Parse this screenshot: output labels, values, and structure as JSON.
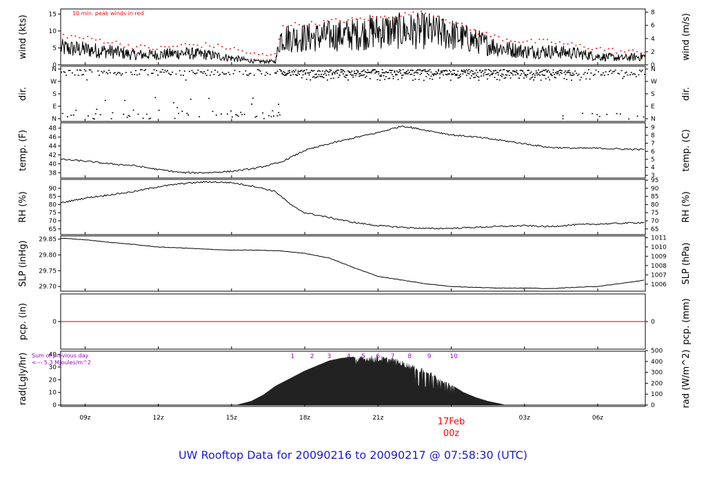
{
  "footer_title": "UW Rooftop Data for 20090216  to  20090217 @ 07:58:30  (UTC)",
  "colors": {
    "axis": "#000000",
    "peak": "#ff0000",
    "precip_line": "#cc0000",
    "title": "#1a1ad6",
    "radnote": "#9900cc",
    "daylabel": "#ff0000"
  },
  "x_axis": {
    "ticks": [
      "09z",
      "12z",
      "15z",
      "18z",
      "21z",
      "00z",
      "03z",
      "06z"
    ],
    "tick_hours": [
      9,
      12,
      15,
      18,
      21,
      24,
      27,
      30
    ],
    "day_label": "17Feb",
    "day_sub": "00z",
    "range_hours": [
      8.0,
      31.95
    ]
  },
  "panels": {
    "wind": {
      "left_label": "wind (kts)",
      "right_label": "wind (m/s)",
      "left_ticks": [
        "15",
        "10",
        "5",
        "0"
      ],
      "right_ticks": [
        "8",
        "6",
        "4",
        "2",
        "0"
      ],
      "note": "10 min. peak winds in red",
      "ylim": [
        0,
        16.5
      ]
    },
    "dir": {
      "left_label": "dir.",
      "right_label": "dir.",
      "left_ticks": [
        "N",
        "W",
        "S",
        "E",
        "N"
      ],
      "right_ticks": [
        "N",
        "W",
        "S",
        "E",
        "N"
      ]
    },
    "temp": {
      "left_label": "temp. (F)",
      "right_label": "temp. (C)",
      "left_ticks": [
        "48",
        "46",
        "44",
        "42",
        "40",
        "38"
      ],
      "right_ticks": [
        "9",
        "8",
        "7",
        "6",
        "5",
        "4",
        "3"
      ],
      "ylim": [
        36.8,
        49.2
      ]
    },
    "rh": {
      "left_label": "RH (%)",
      "right_label": "RH (%)",
      "left_ticks": [
        "90",
        "85",
        "80",
        "75",
        "70",
        "65"
      ],
      "right_ticks": [
        "95",
        "90",
        "85",
        "80",
        "75",
        "70",
        "65"
      ],
      "ylim": [
        61.5,
        95.5
      ]
    },
    "slp": {
      "left_label": "SLP (inHg)",
      "right_label": "SLP (hPa)",
      "left_ticks": [
        "29.85",
        "29.80",
        "29.75",
        "29.70"
      ],
      "right_ticks": [
        "1011",
        "1010",
        "1009",
        "1008",
        "1007",
        "1006"
      ],
      "ylim": [
        29.685,
        29.86
      ]
    },
    "pcp": {
      "left_label": "pcp. (in)",
      "right_label": "pcp. (mm)",
      "left_ticks": [
        "0"
      ],
      "right_ticks": [
        "0"
      ]
    },
    "rad": {
      "left_label": "rad(Lgly/hr)",
      "right_label": "rad (W/m^2)",
      "left_ticks": [
        "40",
        "30",
        "20",
        "10",
        "0"
      ],
      "right_ticks": [
        "500",
        "400",
        "300",
        "200",
        "100",
        "0"
      ],
      "note1": "Sum of previous day",
      "note2": "<--- 5.3 MJoules/m^2",
      "uv_labels": [
        "1",
        "2",
        "3",
        "4",
        "5",
        "6",
        "7",
        "8",
        "9",
        "10"
      ],
      "ylim": [
        0,
        42.5
      ]
    }
  },
  "chart_data": [
    {
      "type": "line",
      "name": "wind",
      "ylabel": "wind (kts)",
      "x_hours": [
        8,
        9,
        10,
        11,
        12,
        13,
        14,
        15,
        16,
        16.8,
        17,
        18,
        19,
        20,
        21,
        22,
        23,
        24,
        25,
        26,
        27,
        28,
        29,
        30,
        31,
        31.9
      ],
      "values": [
        5,
        4.5,
        4,
        3,
        3,
        3.5,
        3,
        2,
        1,
        1,
        8,
        8,
        8.5,
        9,
        10,
        10,
        10,
        9,
        7,
        5,
        4,
        4,
        3.5,
        2.5,
        2,
        2.5
      ],
      "peak_values": [
        9,
        8,
        7,
        5.5,
        5,
        6,
        6,
        5,
        3,
        3,
        12,
        12,
        13,
        13.5,
        14,
        15,
        15.5,
        13,
        10,
        8,
        7,
        7,
        6,
        5,
        4,
        4
      ]
    },
    {
      "type": "line",
      "name": "temp",
      "ylabel": "temp. (F)",
      "x_hours": [
        8,
        9,
        10,
        11,
        12,
        13,
        14,
        15,
        16,
        17,
        18,
        19,
        20,
        21,
        22,
        23,
        24,
        25,
        26,
        27,
        28,
        29,
        30,
        31,
        31.9
      ],
      "values": [
        41,
        40.6,
        40,
        39.6,
        38.7,
        38,
        38,
        38.3,
        39,
        40.3,
        43,
        44.5,
        45.8,
        47,
        48.5,
        47.5,
        46.5,
        46,
        45.3,
        44.5,
        43.7,
        43.5,
        43.5,
        43.3,
        43.2
      ]
    },
    {
      "type": "line",
      "name": "rh",
      "ylabel": "RH (%)",
      "x_hours": [
        8,
        9,
        10,
        11,
        12,
        13,
        14,
        15,
        16,
        16.8,
        17.5,
        18,
        19,
        20,
        21,
        22,
        23,
        24,
        25,
        26,
        27,
        28,
        29,
        30,
        31,
        31.9
      ],
      "values": [
        81,
        84,
        86,
        88,
        91,
        93,
        94,
        93.5,
        91,
        88,
        79,
        75,
        72,
        69,
        67,
        66,
        65.2,
        65.4,
        66,
        66.5,
        67,
        66.4,
        67.5,
        68,
        68.5,
        69
      ]
    },
    {
      "type": "line",
      "name": "slp",
      "ylabel": "SLP (inHg)",
      "x_hours": [
        8,
        9,
        10,
        11,
        12,
        13,
        14,
        15,
        16,
        17,
        18,
        19,
        20,
        21,
        22,
        23,
        24,
        25,
        26,
        27,
        28,
        29,
        30,
        31,
        31.9
      ],
      "values": [
        29.853,
        29.848,
        29.84,
        29.833,
        29.825,
        29.822,
        29.818,
        29.815,
        29.815,
        29.813,
        29.805,
        29.79,
        29.76,
        29.732,
        29.72,
        29.708,
        29.7,
        29.697,
        29.695,
        29.695,
        29.693,
        29.697,
        29.7,
        29.71,
        29.72
      ]
    },
    {
      "type": "line",
      "name": "pcp",
      "ylabel": "pcp. (in)",
      "x_hours": [
        8,
        31.95
      ],
      "values": [
        0,
        0
      ]
    },
    {
      "type": "area",
      "name": "rad",
      "ylabel": "rad(Lgly/hr)",
      "x_hours": [
        15.2,
        15.8,
        16.3,
        16.8,
        17.5,
        18,
        18.5,
        19,
        19.5,
        20,
        20.5,
        21,
        21.5,
        22,
        22.5,
        23,
        23.5,
        24,
        24.5,
        25,
        25.5,
        26,
        26.2
      ],
      "values": [
        0,
        3,
        8,
        15,
        22,
        27,
        31,
        35,
        37,
        38,
        39,
        39,
        38,
        35,
        31,
        28,
        22,
        16,
        10,
        6,
        3,
        1,
        0
      ]
    }
  ]
}
